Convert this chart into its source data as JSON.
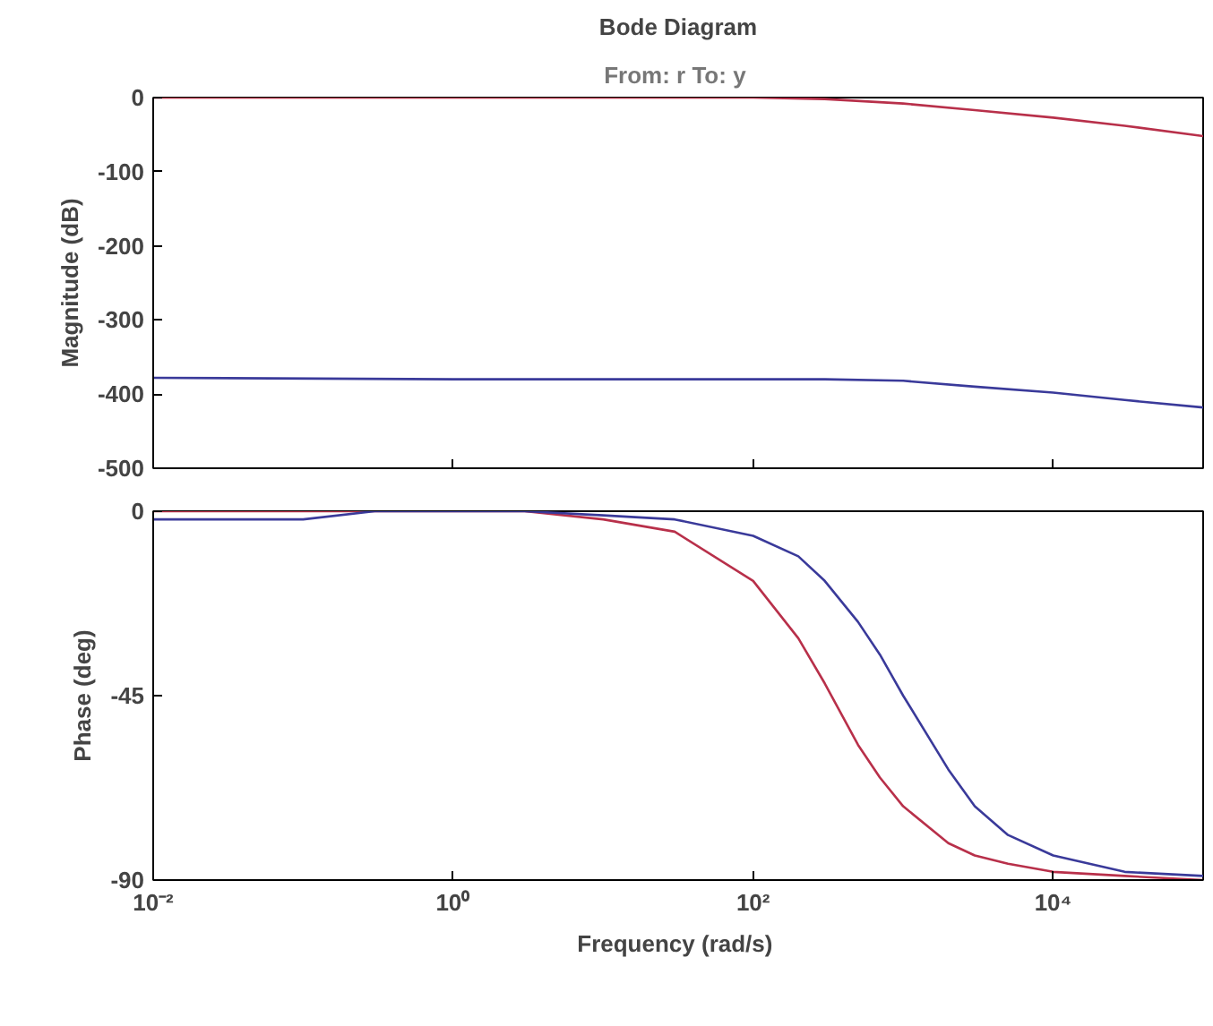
{
  "chart_data": [
    {
      "type": "line",
      "title": "Bode Diagram",
      "subtitle": "From: r  To: y",
      "ylabel": "Magnitude (dB)",
      "xlim": [
        0.01,
        100000
      ],
      "ylim": [
        -500,
        0
      ],
      "yticks": [
        -500,
        -400,
        -300,
        -200,
        -100,
        0
      ],
      "log": "x",
      "grid": false,
      "tick_labels": "y",
      "series": [
        {
          "color": "#b8304a",
          "x": [
            0.01,
            1,
            100,
            300,
            1000,
            3000,
            10000,
            30000,
            100000
          ],
          "values": [
            0,
            0,
            0,
            -2,
            -8,
            -17,
            -27,
            -38,
            -52
          ]
        },
        {
          "color": "#3a3a9a",
          "x": [
            0.01,
            1,
            100,
            300,
            1000,
            3000,
            10000,
            30000,
            100000
          ],
          "values": [
            -378,
            -380,
            -380,
            -380,
            -382,
            -390,
            -398,
            -408,
            -418
          ]
        }
      ]
    },
    {
      "type": "line",
      "xlabel": "Frequency  (rad/s)",
      "ylabel": "Phase (deg)",
      "xlim": [
        0.01,
        100000
      ],
      "xticks": [
        {
          "value": 0.01,
          "label": "10⁻²"
        },
        {
          "value": 1,
          "label": "10⁰"
        },
        {
          "value": 100,
          "label": "10²"
        },
        {
          "value": 10000,
          "label": "10⁴"
        }
      ],
      "ylim": [
        -90,
        0
      ],
      "yticks": [
        -90,
        -45,
        0
      ],
      "log": "x",
      "grid": false,
      "series": [
        {
          "color": "#b8304a",
          "x": [
            0.01,
            0.03,
            0.1,
            0.3,
            1,
            3,
            10,
            30,
            100,
            200,
            300,
            500,
            700,
            1000,
            2000,
            3000,
            5000,
            10000,
            30000,
            100000
          ],
          "values": [
            0,
            0,
            0,
            0,
            0,
            0,
            -2,
            -5,
            -17,
            -31,
            -42,
            -57,
            -65,
            -72,
            -81,
            -84,
            -86,
            -88,
            -89,
            -90
          ]
        },
        {
          "color": "#3a3a9a",
          "x": [
            0.01,
            0.03,
            0.1,
            0.3,
            1,
            3,
            10,
            30,
            100,
            200,
            300,
            500,
            700,
            1000,
            2000,
            3000,
            5000,
            10000,
            30000,
            100000
          ],
          "values": [
            -2,
            -2,
            -2,
            0,
            0,
            0,
            -1,
            -2,
            -6,
            -11,
            -17,
            -27,
            -35,
            -45,
            -63,
            -72,
            -79,
            -84,
            -88,
            -89
          ]
        }
      ]
    }
  ]
}
